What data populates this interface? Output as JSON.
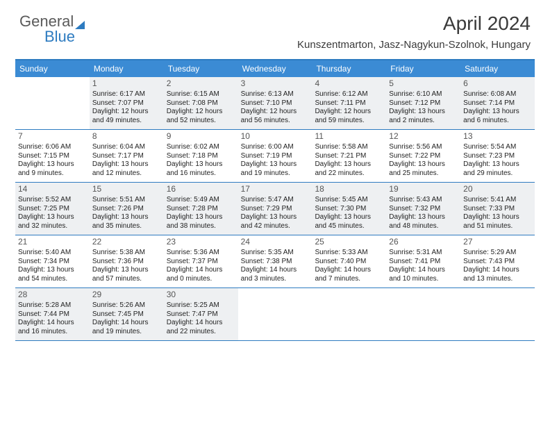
{
  "logo": {
    "text1": "General",
    "text2": "Blue"
  },
  "title": "April 2024",
  "location": "Kunszentmarton, Jasz-Nagykun-Szolnok, Hungary",
  "colors": {
    "header_bg": "#3b8bd4",
    "header_text": "#ffffff",
    "border": "#2d7bc0",
    "shaded_bg": "#eef0f2",
    "body_text": "#222222",
    "logo_gray": "#5a5a5a",
    "logo_blue": "#2d7bc0"
  },
  "day_headers": [
    "Sunday",
    "Monday",
    "Tuesday",
    "Wednesday",
    "Thursday",
    "Friday",
    "Saturday"
  ],
  "weeks": [
    [
      {
        "day": "",
        "lines": [],
        "shaded": false
      },
      {
        "day": "1",
        "lines": [
          "Sunrise: 6:17 AM",
          "Sunset: 7:07 PM",
          "Daylight: 12 hours and 49 minutes."
        ],
        "shaded": true
      },
      {
        "day": "2",
        "lines": [
          "Sunrise: 6:15 AM",
          "Sunset: 7:08 PM",
          "Daylight: 12 hours and 52 minutes."
        ],
        "shaded": true
      },
      {
        "day": "3",
        "lines": [
          "Sunrise: 6:13 AM",
          "Sunset: 7:10 PM",
          "Daylight: 12 hours and 56 minutes."
        ],
        "shaded": true
      },
      {
        "day": "4",
        "lines": [
          "Sunrise: 6:12 AM",
          "Sunset: 7:11 PM",
          "Daylight: 12 hours and 59 minutes."
        ],
        "shaded": true
      },
      {
        "day": "5",
        "lines": [
          "Sunrise: 6:10 AM",
          "Sunset: 7:12 PM",
          "Daylight: 13 hours and 2 minutes."
        ],
        "shaded": true
      },
      {
        "day": "6",
        "lines": [
          "Sunrise: 6:08 AM",
          "Sunset: 7:14 PM",
          "Daylight: 13 hours and 6 minutes."
        ],
        "shaded": true
      }
    ],
    [
      {
        "day": "7",
        "lines": [
          "Sunrise: 6:06 AM",
          "Sunset: 7:15 PM",
          "Daylight: 13 hours and 9 minutes."
        ],
        "shaded": false
      },
      {
        "day": "8",
        "lines": [
          "Sunrise: 6:04 AM",
          "Sunset: 7:17 PM",
          "Daylight: 13 hours and 12 minutes."
        ],
        "shaded": false
      },
      {
        "day": "9",
        "lines": [
          "Sunrise: 6:02 AM",
          "Sunset: 7:18 PM",
          "Daylight: 13 hours and 16 minutes."
        ],
        "shaded": false
      },
      {
        "day": "10",
        "lines": [
          "Sunrise: 6:00 AM",
          "Sunset: 7:19 PM",
          "Daylight: 13 hours and 19 minutes."
        ],
        "shaded": false
      },
      {
        "day": "11",
        "lines": [
          "Sunrise: 5:58 AM",
          "Sunset: 7:21 PM",
          "Daylight: 13 hours and 22 minutes."
        ],
        "shaded": false
      },
      {
        "day": "12",
        "lines": [
          "Sunrise: 5:56 AM",
          "Sunset: 7:22 PM",
          "Daylight: 13 hours and 25 minutes."
        ],
        "shaded": false
      },
      {
        "day": "13",
        "lines": [
          "Sunrise: 5:54 AM",
          "Sunset: 7:23 PM",
          "Daylight: 13 hours and 29 minutes."
        ],
        "shaded": false
      }
    ],
    [
      {
        "day": "14",
        "lines": [
          "Sunrise: 5:52 AM",
          "Sunset: 7:25 PM",
          "Daylight: 13 hours and 32 minutes."
        ],
        "shaded": true
      },
      {
        "day": "15",
        "lines": [
          "Sunrise: 5:51 AM",
          "Sunset: 7:26 PM",
          "Daylight: 13 hours and 35 minutes."
        ],
        "shaded": true
      },
      {
        "day": "16",
        "lines": [
          "Sunrise: 5:49 AM",
          "Sunset: 7:28 PM",
          "Daylight: 13 hours and 38 minutes."
        ],
        "shaded": true
      },
      {
        "day": "17",
        "lines": [
          "Sunrise: 5:47 AM",
          "Sunset: 7:29 PM",
          "Daylight: 13 hours and 42 minutes."
        ],
        "shaded": true
      },
      {
        "day": "18",
        "lines": [
          "Sunrise: 5:45 AM",
          "Sunset: 7:30 PM",
          "Daylight: 13 hours and 45 minutes."
        ],
        "shaded": true
      },
      {
        "day": "19",
        "lines": [
          "Sunrise: 5:43 AM",
          "Sunset: 7:32 PM",
          "Daylight: 13 hours and 48 minutes."
        ],
        "shaded": true
      },
      {
        "day": "20",
        "lines": [
          "Sunrise: 5:41 AM",
          "Sunset: 7:33 PM",
          "Daylight: 13 hours and 51 minutes."
        ],
        "shaded": true
      }
    ],
    [
      {
        "day": "21",
        "lines": [
          "Sunrise: 5:40 AM",
          "Sunset: 7:34 PM",
          "Daylight: 13 hours and 54 minutes."
        ],
        "shaded": false
      },
      {
        "day": "22",
        "lines": [
          "Sunrise: 5:38 AM",
          "Sunset: 7:36 PM",
          "Daylight: 13 hours and 57 minutes."
        ],
        "shaded": false
      },
      {
        "day": "23",
        "lines": [
          "Sunrise: 5:36 AM",
          "Sunset: 7:37 PM",
          "Daylight: 14 hours and 0 minutes."
        ],
        "shaded": false
      },
      {
        "day": "24",
        "lines": [
          "Sunrise: 5:35 AM",
          "Sunset: 7:38 PM",
          "Daylight: 14 hours and 3 minutes."
        ],
        "shaded": false
      },
      {
        "day": "25",
        "lines": [
          "Sunrise: 5:33 AM",
          "Sunset: 7:40 PM",
          "Daylight: 14 hours and 7 minutes."
        ],
        "shaded": false
      },
      {
        "day": "26",
        "lines": [
          "Sunrise: 5:31 AM",
          "Sunset: 7:41 PM",
          "Daylight: 14 hours and 10 minutes."
        ],
        "shaded": false
      },
      {
        "day": "27",
        "lines": [
          "Sunrise: 5:29 AM",
          "Sunset: 7:43 PM",
          "Daylight: 14 hours and 13 minutes."
        ],
        "shaded": false
      }
    ],
    [
      {
        "day": "28",
        "lines": [
          "Sunrise: 5:28 AM",
          "Sunset: 7:44 PM",
          "Daylight: 14 hours and 16 minutes."
        ],
        "shaded": true
      },
      {
        "day": "29",
        "lines": [
          "Sunrise: 5:26 AM",
          "Sunset: 7:45 PM",
          "Daylight: 14 hours and 19 minutes."
        ],
        "shaded": true
      },
      {
        "day": "30",
        "lines": [
          "Sunrise: 5:25 AM",
          "Sunset: 7:47 PM",
          "Daylight: 14 hours and 22 minutes."
        ],
        "shaded": true
      },
      {
        "day": "",
        "lines": [],
        "shaded": false
      },
      {
        "day": "",
        "lines": [],
        "shaded": false
      },
      {
        "day": "",
        "lines": [],
        "shaded": false
      },
      {
        "day": "",
        "lines": [],
        "shaded": false
      }
    ]
  ]
}
